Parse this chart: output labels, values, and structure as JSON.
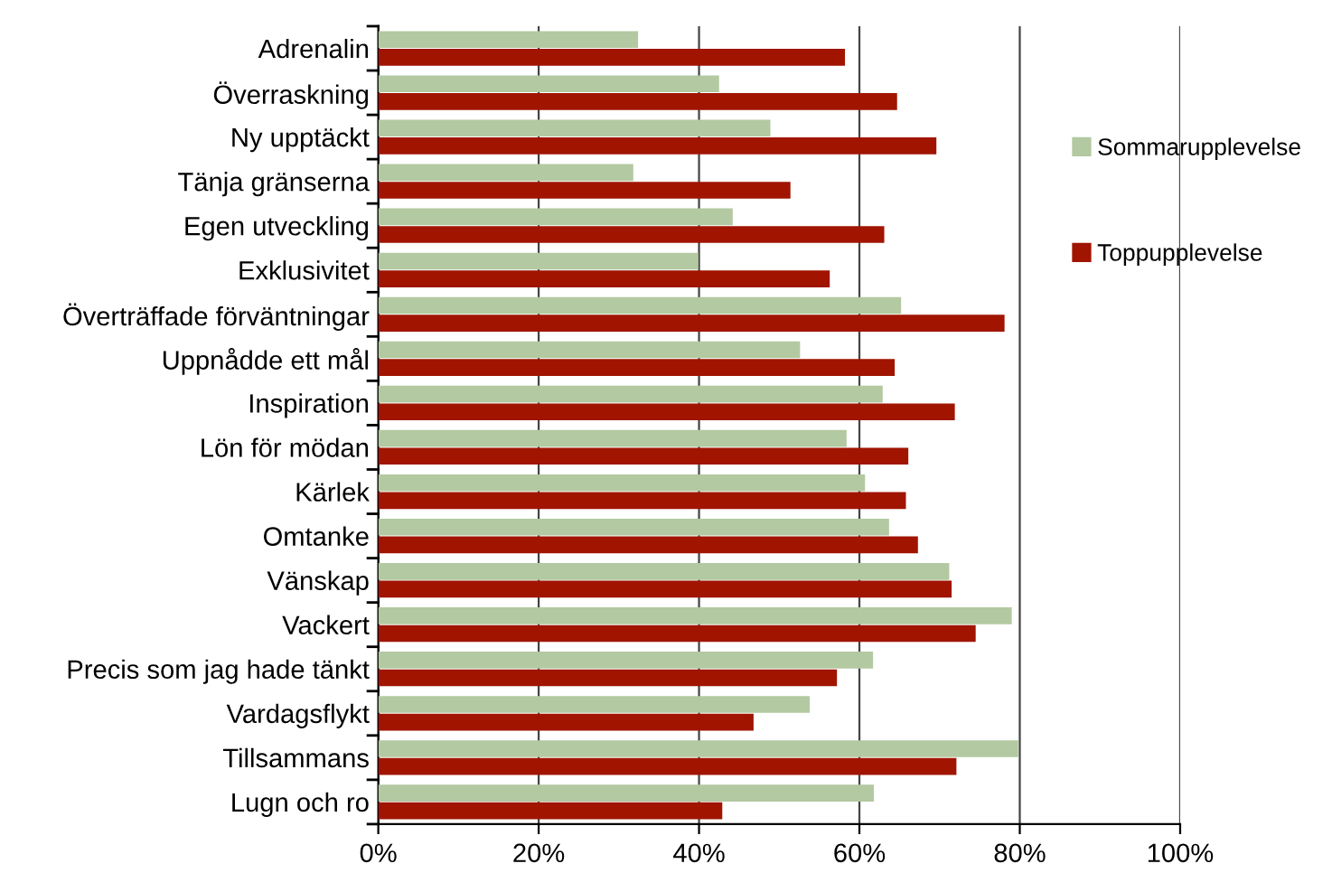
{
  "chart_data": {
    "type": "bar",
    "orientation": "horizontal",
    "categories": [
      "Adrenalin",
      "Överraskning",
      "Ny upptäckt",
      "Tänja gränserna",
      "Egen utveckling",
      "Exklusivitet",
      "Överträffade förväntningar",
      "Uppnådde ett mål",
      "Inspiration",
      "Lön för mödan",
      "Kärlek",
      "Omtanke",
      "Vänskap",
      "Vackert",
      "Precis som jag hade tänkt",
      "Vardagsflykt",
      "Tillsammans",
      "Lugn och ro"
    ],
    "series": [
      {
        "name": "Sommarupplevelse",
        "color": "#b3c9a1",
        "values": [
          32.4,
          42.5,
          48.9,
          31.8,
          44.2,
          39.9,
          65.2,
          52.6,
          62.9,
          58.4,
          60.7,
          63.7,
          71.2,
          79.0,
          61.7,
          53.8,
          79.8,
          61.8
        ]
      },
      {
        "name": "Toppupplevelse",
        "color": "#a01400",
        "values": [
          58.2,
          64.7,
          69.6,
          51.4,
          63.1,
          56.3,
          78.1,
          64.4,
          71.9,
          66.1,
          65.8,
          67.3,
          71.5,
          74.5,
          57.2,
          46.8,
          72.1,
          42.9
        ]
      }
    ],
    "xlim": [
      0,
      100
    ],
    "xticks": [
      {
        "value": 0,
        "label": "0%"
      },
      {
        "value": 20,
        "label": "20%"
      },
      {
        "value": 40,
        "label": "40%"
      },
      {
        "value": 60,
        "label": "60%"
      },
      {
        "value": 80,
        "label": "80%"
      },
      {
        "value": 100,
        "label": "100%"
      }
    ],
    "grid": "x",
    "legend": "right"
  }
}
